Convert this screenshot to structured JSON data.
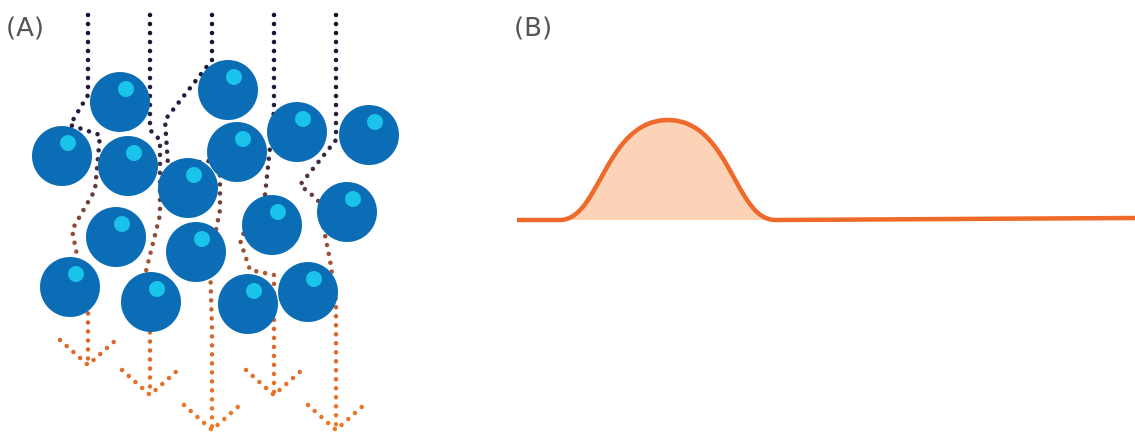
{
  "panels": [
    {
      "label": "(A)"
    },
    {
      "label": "(B)"
    }
  ]
}
